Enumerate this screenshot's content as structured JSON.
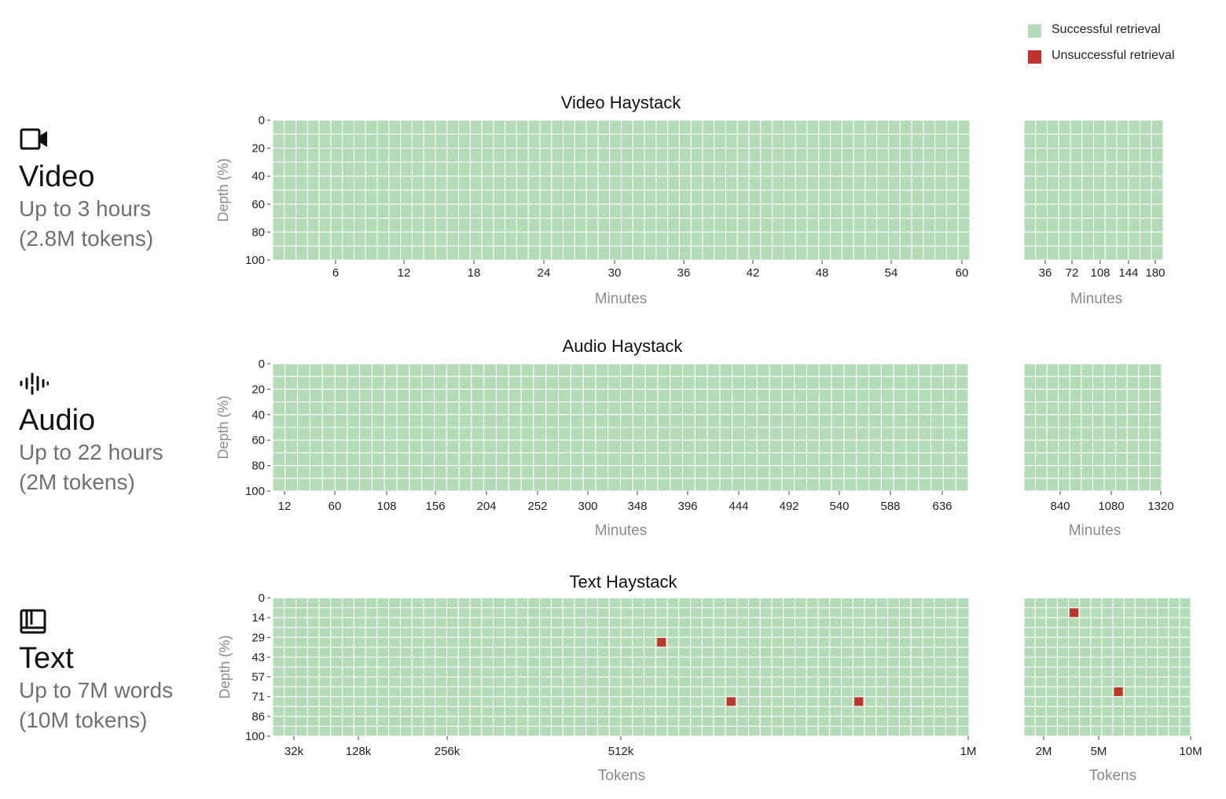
{
  "legend": {
    "success_label": "Successful retrieval",
    "fail_label": "Unsuccessful retrieval",
    "success_color": "#b3dbb8",
    "fail_color": "#c0352b"
  },
  "sections": [
    {
      "title": "Video",
      "line1": "Up to 3 hours",
      "line2": "(2.8M tokens)",
      "icon": "video-camera-icon"
    },
    {
      "title": "Audio",
      "line1": "Up to 22 hours",
      "line2": "(2M tokens)",
      "icon": "audio-waveform-icon"
    },
    {
      "title": "Text",
      "line1": "Up to 7M words",
      "line2": "(10M tokens)",
      "icon": "book-icon"
    }
  ],
  "chart_data": [
    {
      "type": "heatmap",
      "title": "Video Haystack",
      "xlabel": "Minutes",
      "ylabel": "Depth (%)",
      "y_ticks": [
        "0",
        "20",
        "40",
        "60",
        "80",
        "100"
      ],
      "panels": [
        {
          "x_ticks": [
            "6",
            "12",
            "18",
            "24",
            "30",
            "36",
            "42",
            "48",
            "54",
            "60"
          ],
          "cols": 60,
          "rows": 10,
          "failures": []
        },
        {
          "x_ticks": [
            "36",
            "72",
            "108",
            "144",
            "180"
          ],
          "cols": 12,
          "rows": 10,
          "failures": []
        }
      ]
    },
    {
      "type": "heatmap",
      "title": "Audio Haystack",
      "xlabel": "Minutes",
      "ylabel": "Depth (%)",
      "y_ticks": [
        "0",
        "20",
        "40",
        "60",
        "80",
        "100"
      ],
      "panels": [
        {
          "x_ticks": [
            "12",
            "60",
            "108",
            "156",
            "204",
            "252",
            "300",
            "348",
            "396",
            "444",
            "492",
            "540",
            "588",
            "636"
          ],
          "cols": 56,
          "rows": 10,
          "failures": []
        },
        {
          "x_ticks": [
            "840",
            "1080",
            "1320"
          ],
          "cols": 12,
          "rows": 10,
          "failures": []
        }
      ]
    },
    {
      "type": "heatmap",
      "title": "Text Haystack",
      "xlabel": "Tokens",
      "ylabel": "Depth (%)",
      "y_ticks": [
        "0",
        "14",
        "29",
        "43",
        "57",
        "71",
        "86",
        "100"
      ],
      "panels": [
        {
          "x_ticks": [
            "32k",
            "128k",
            "256k",
            "512k",
            "1M"
          ],
          "cols": 60,
          "rows": 14,
          "failures": [
            {
              "col": 33,
              "row": 4
            },
            {
              "col": 39,
              "row": 10
            },
            {
              "col": 50,
              "row": 10
            }
          ]
        },
        {
          "x_ticks": [
            "2M",
            "5M",
            "10M"
          ],
          "cols": 15,
          "rows": 14,
          "failures": [
            {
              "col": 4,
              "row": 1
            },
            {
              "col": 8,
              "row": 9
            }
          ]
        }
      ]
    }
  ]
}
